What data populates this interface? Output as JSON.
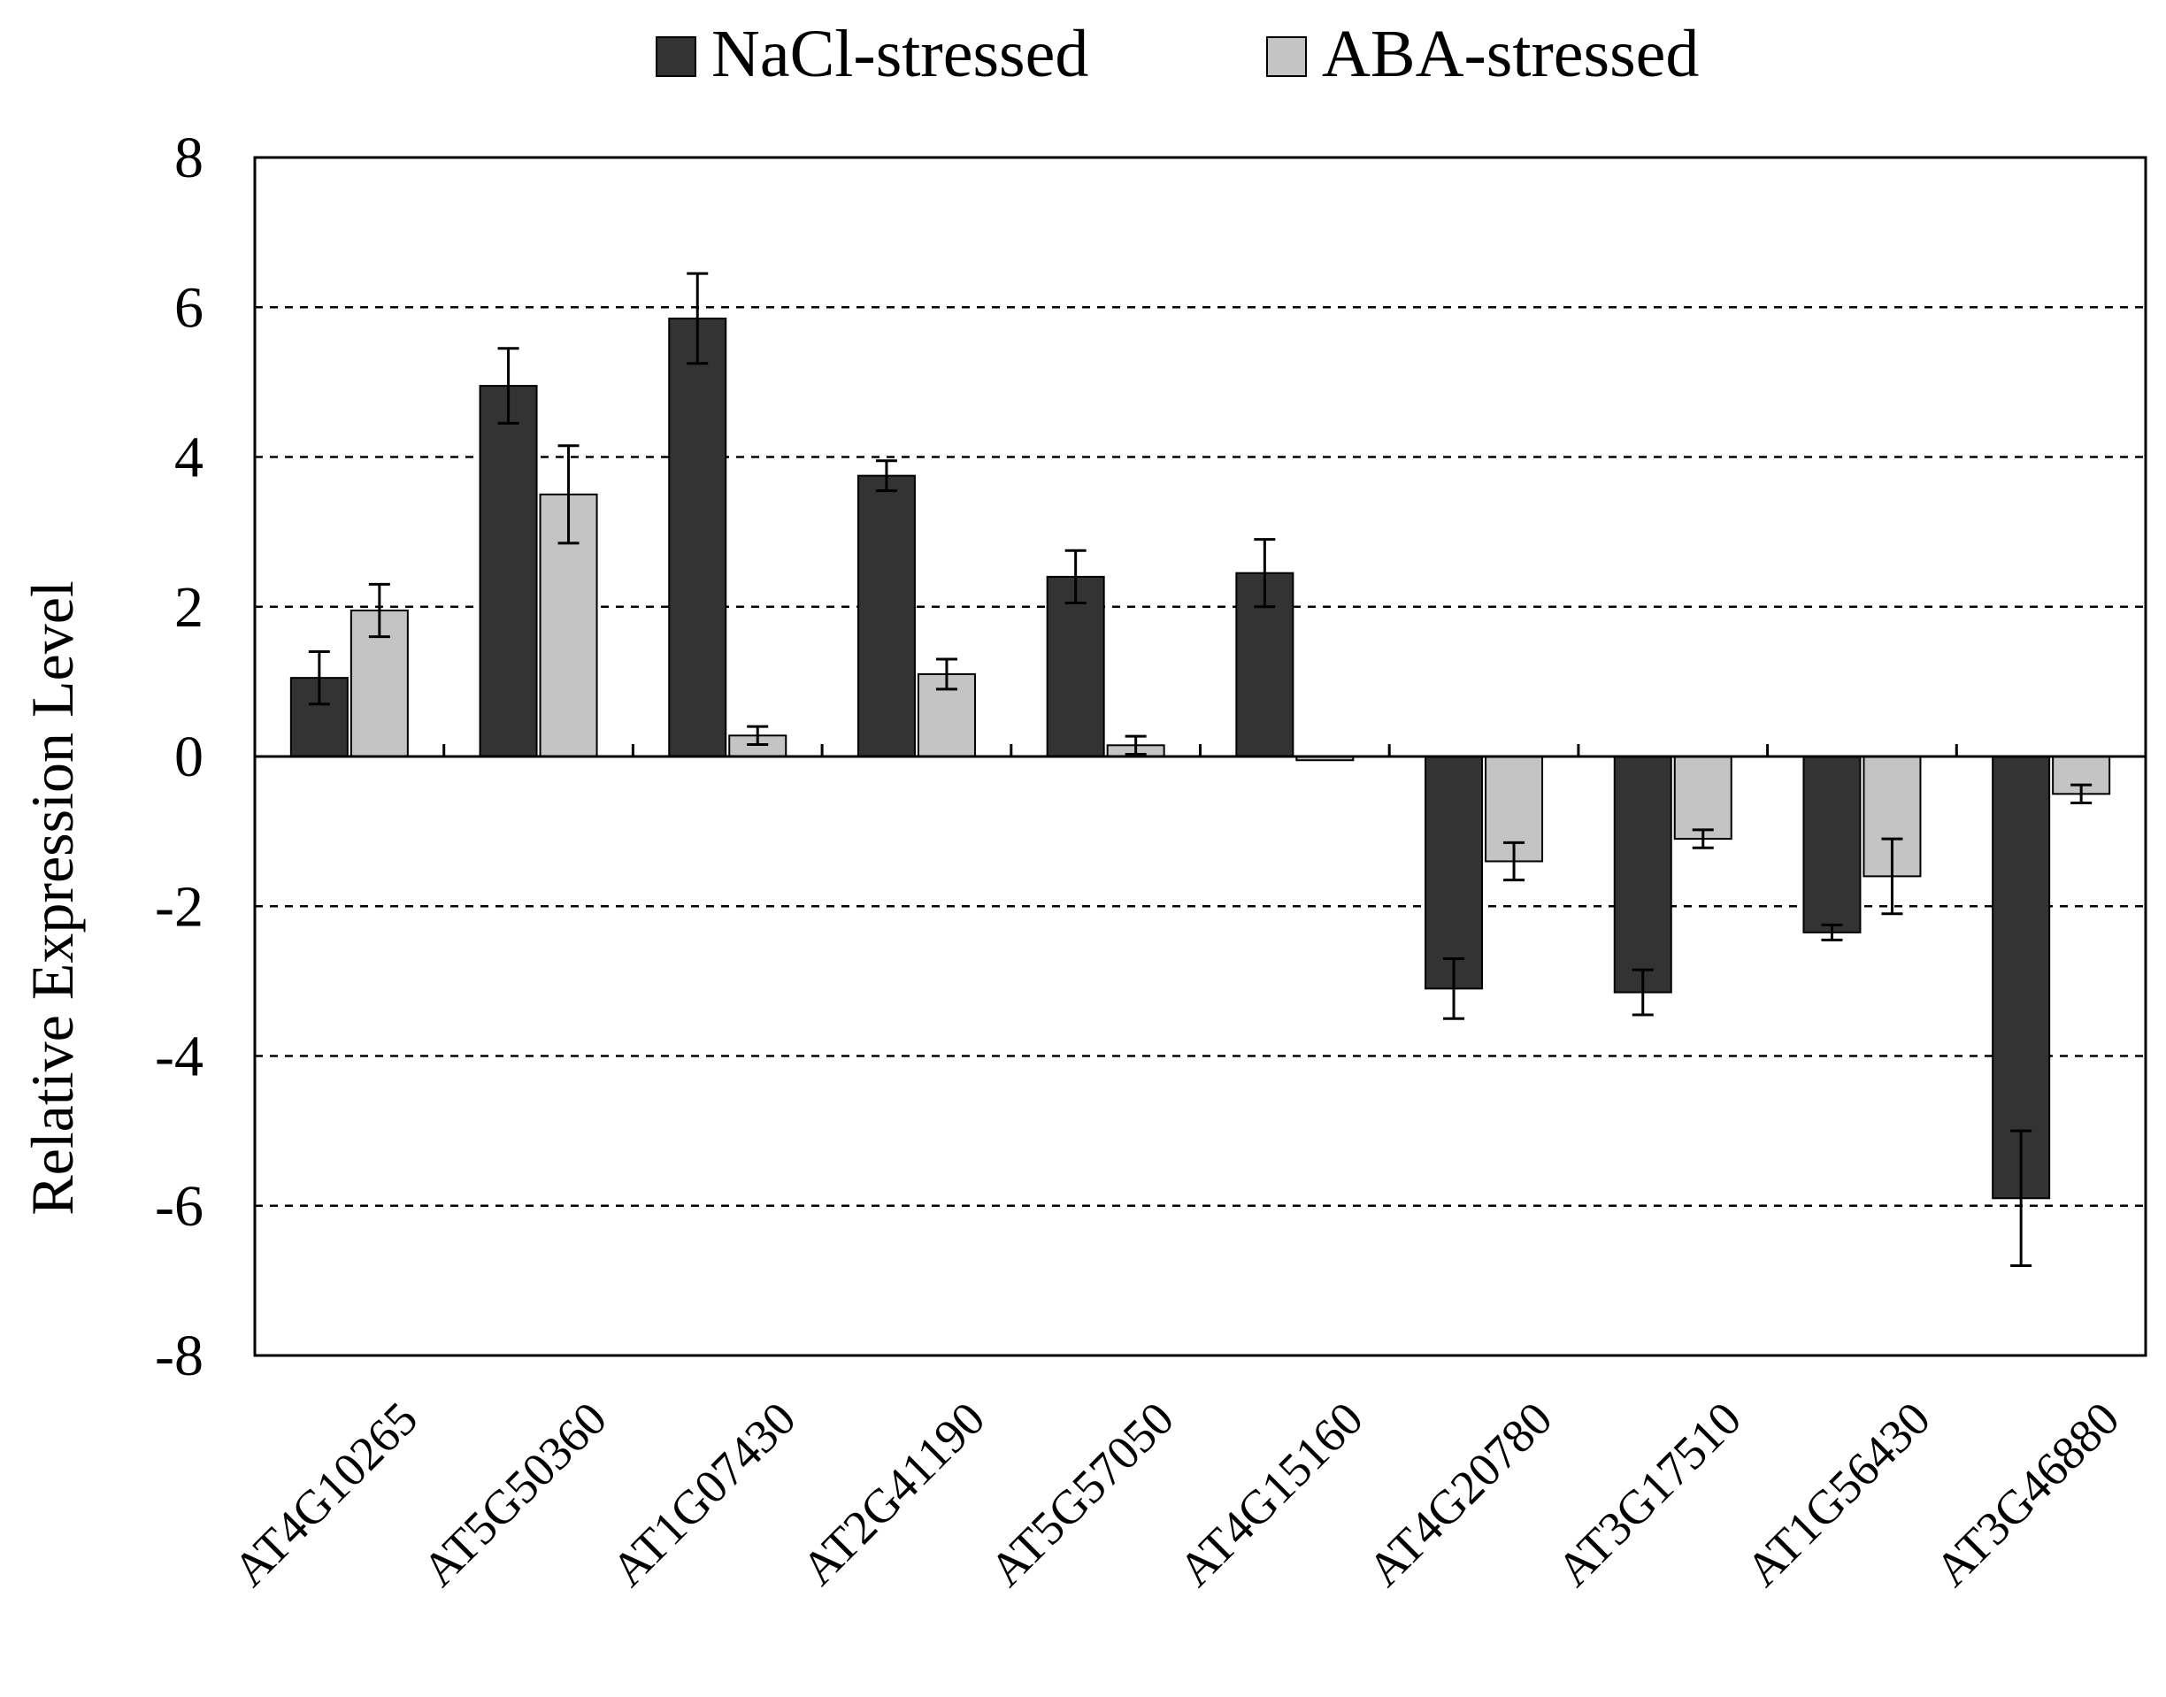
{
  "chart_data": {
    "type": "bar",
    "title": "",
    "xlabel": "",
    "ylabel": "Relative Expression Level",
    "ylim": [
      -8,
      8
    ],
    "yticks": [
      8,
      6,
      4,
      2,
      0,
      -2,
      -4,
      -6,
      -8
    ],
    "ytick_labels": [
      "8",
      "6",
      "4",
      "2",
      "0",
      "-2",
      "-4",
      "-6",
      "-8"
    ],
    "grid": "horizontal dashed",
    "legend_position": "top-center",
    "categories": [
      "AT4G10265",
      "AT5G50360",
      "AT1G07430",
      "AT2G41190",
      "AT5G57050",
      "AT4G15160",
      "AT4G20780",
      "AT3G17510",
      "AT1G56430",
      "AT3G46880"
    ],
    "series": [
      {
        "name": "NaCl-stressed",
        "color": "#333333",
        "values": [
          1.05,
          4.95,
          5.85,
          3.75,
          2.4,
          2.45,
          -3.1,
          -3.15,
          -2.35,
          -5.9
        ],
        "errors": [
          0.35,
          0.5,
          0.6,
          0.2,
          0.35,
          0.45,
          0.4,
          0.3,
          0.1,
          0.9
        ]
      },
      {
        "name": "ABA-stressed",
        "color": "#c4c4c4",
        "values": [
          1.95,
          3.5,
          0.28,
          1.1,
          0.15,
          -0.05,
          -1.4,
          -1.1,
          -1.6,
          -0.5
        ],
        "errors": [
          0.35,
          0.65,
          0.12,
          0.2,
          0.12,
          0.0,
          0.25,
          0.12,
          0.5,
          0.12
        ]
      }
    ]
  }
}
